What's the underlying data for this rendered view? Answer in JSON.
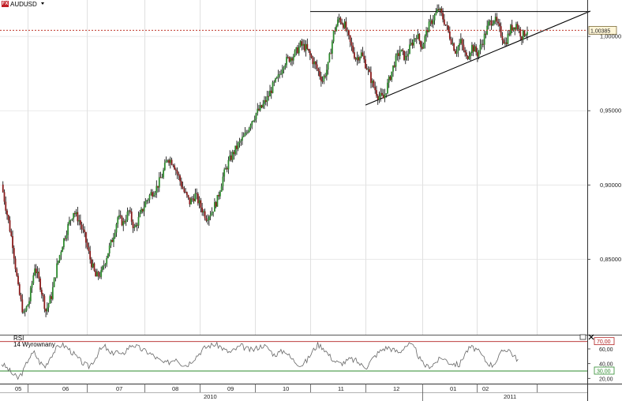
{
  "chart_data": {
    "type": "candlestick",
    "symbol": "AUDUSD",
    "badge": "FX",
    "last_price_label": "1,00385",
    "last_price": 1.00385,
    "price_ylim": [
      0.8,
      1.02
    ],
    "price_ticks": [
      "0,85000",
      "0,90000",
      "0,95000",
      "1,00000"
    ],
    "price_tick_values": [
      0.85,
      0.9,
      0.95,
      1.0
    ],
    "months": [
      "05",
      "06",
      "07",
      "08",
      "09",
      "10",
      "11",
      "12",
      "01",
      "02"
    ],
    "years": [
      "2010",
      "2011"
    ],
    "close_path": [
      [
        0,
        0.9
      ],
      [
        1,
        0.88
      ],
      [
        2,
        0.86
      ],
      [
        3,
        0.83
      ],
      [
        4,
        0.812
      ],
      [
        5,
        0.822
      ],
      [
        6,
        0.845
      ],
      [
        7,
        0.832
      ],
      [
        8,
        0.815
      ],
      [
        9,
        0.825
      ],
      [
        10,
        0.845
      ],
      [
        11,
        0.86
      ],
      [
        12,
        0.872
      ],
      [
        13,
        0.882
      ],
      [
        14,
        0.876
      ],
      [
        15,
        0.865
      ],
      [
        16,
        0.85
      ],
      [
        17,
        0.838
      ],
      [
        18,
        0.84
      ],
      [
        19,
        0.852
      ],
      [
        20,
        0.863
      ],
      [
        21,
        0.878
      ],
      [
        22,
        0.874
      ],
      [
        23,
        0.882
      ],
      [
        24,
        0.87
      ],
      [
        25,
        0.879
      ],
      [
        26,
        0.888
      ],
      [
        27,
        0.894
      ],
      [
        28,
        0.898
      ],
      [
        29,
        0.906
      ],
      [
        30,
        0.918
      ],
      [
        31,
        0.915
      ],
      [
        32,
        0.905
      ],
      [
        33,
        0.895
      ],
      [
        34,
        0.888
      ],
      [
        35,
        0.893
      ],
      [
        36,
        0.885
      ],
      [
        37,
        0.878
      ],
      [
        38,
        0.882
      ],
      [
        39,
        0.89
      ],
      [
        40,
        0.905
      ],
      [
        41,
        0.915
      ],
      [
        42,
        0.922
      ],
      [
        43,
        0.928
      ],
      [
        44,
        0.933
      ],
      [
        45,
        0.942
      ],
      [
        46,
        0.948
      ],
      [
        47,
        0.952
      ],
      [
        48,
        0.958
      ],
      [
        49,
        0.966
      ],
      [
        50,
        0.972
      ],
      [
        51,
        0.982
      ],
      [
        52,
        0.985
      ],
      [
        53,
        0.988
      ],
      [
        54,
        0.994
      ],
      [
        55,
        0.992
      ],
      [
        56,
        0.985
      ],
      [
        57,
        0.978
      ],
      [
        58,
        0.97
      ],
      [
        59,
        0.98
      ],
      [
        60,
        1.002
      ],
      [
        61,
        1.012
      ],
      [
        62,
        1.007
      ],
      [
        63,
        0.995
      ],
      [
        64,
        0.985
      ],
      [
        65,
        0.988
      ],
      [
        66,
        0.979
      ],
      [
        67,
        0.968
      ],
      [
        68,
        0.96
      ],
      [
        69,
        0.958
      ],
      [
        70,
        0.97
      ],
      [
        71,
        0.982
      ],
      [
        72,
        0.99
      ],
      [
        73,
        0.985
      ],
      [
        74,
        0.994
      ],
      [
        75,
        1.001
      ],
      [
        76,
        0.993
      ],
      [
        77,
        1.005
      ],
      [
        78,
        1.012
      ],
      [
        79,
        1.018
      ],
      [
        80,
        1.01
      ],
      [
        81,
        1.0
      ],
      [
        82,
        0.99
      ],
      [
        83,
        0.996
      ],
      [
        84,
        0.985
      ],
      [
        85,
        0.993
      ],
      [
        86,
        0.988
      ],
      [
        87,
        0.997
      ],
      [
        88,
        1.008
      ],
      [
        89,
        1.012
      ],
      [
        90,
        1.004
      ],
      [
        91,
        0.995
      ],
      [
        92,
        1.005
      ],
      [
        93,
        1.008
      ],
      [
        94,
        1.0
      ],
      [
        95,
        1.004
      ]
    ],
    "rsi": {
      "title": "RSI",
      "subtitle": "14 Wyrownany",
      "ylim": [
        15,
        75
      ],
      "ticks": [
        "60,00",
        "40,00",
        "20,00"
      ],
      "tick_values": [
        60,
        40,
        20
      ],
      "levels": [
        "70,00",
        "30,00"
      ],
      "level_values": [
        70,
        30
      ],
      "path": [
        [
          0,
          40
        ],
        [
          1,
          34
        ],
        [
          2,
          26
        ],
        [
          3,
          20
        ],
        [
          4,
          30
        ],
        [
          5,
          48
        ],
        [
          6,
          55
        ],
        [
          7,
          42
        ],
        [
          8,
          36
        ],
        [
          9,
          50
        ],
        [
          10,
          60
        ],
        [
          11,
          66
        ],
        [
          12,
          62
        ],
        [
          13,
          55
        ],
        [
          14,
          47
        ],
        [
          15,
          40
        ],
        [
          16,
          36
        ],
        [
          17,
          45
        ],
        [
          18,
          58
        ],
        [
          19,
          63
        ],
        [
          20,
          52
        ],
        [
          21,
          58
        ],
        [
          22,
          50
        ],
        [
          23,
          60
        ],
        [
          24,
          66
        ],
        [
          25,
          62
        ],
        [
          26,
          58
        ],
        [
          27,
          55
        ],
        [
          28,
          50
        ],
        [
          29,
          44
        ],
        [
          30,
          40
        ],
        [
          31,
          43
        ],
        [
          32,
          48
        ],
        [
          33,
          40
        ],
        [
          34,
          38
        ],
        [
          35,
          45
        ],
        [
          36,
          52
        ],
        [
          37,
          60
        ],
        [
          38,
          64
        ],
        [
          39,
          66
        ],
        [
          40,
          64
        ],
        [
          41,
          58
        ],
        [
          42,
          55
        ],
        [
          43,
          60
        ],
        [
          44,
          64
        ],
        [
          45,
          60
        ],
        [
          46,
          58
        ],
        [
          47,
          62
        ],
        [
          48,
          65
        ],
        [
          49,
          60
        ],
        [
          50,
          52
        ],
        [
          51,
          55
        ],
        [
          52,
          58
        ],
        [
          53,
          48
        ],
        [
          54,
          42
        ],
        [
          55,
          38
        ],
        [
          56,
          44
        ],
        [
          57,
          56
        ],
        [
          58,
          66
        ],
        [
          59,
          62
        ],
        [
          60,
          52
        ],
        [
          61,
          44
        ],
        [
          62,
          40
        ],
        [
          63,
          42
        ],
        [
          64,
          46
        ],
        [
          65,
          44
        ],
        [
          66,
          38
        ],
        [
          67,
          36
        ],
        [
          68,
          46
        ],
        [
          69,
          54
        ],
        [
          70,
          60
        ],
        [
          71,
          62
        ],
        [
          72,
          58
        ],
        [
          73,
          55
        ],
        [
          74,
          64
        ],
        [
          75,
          66
        ],
        [
          76,
          58
        ],
        [
          77,
          42
        ],
        [
          78,
          36
        ],
        [
          79,
          38
        ],
        [
          80,
          44
        ],
        [
          81,
          48
        ],
        [
          82,
          42
        ],
        [
          83,
          40
        ],
        [
          84,
          38
        ],
        [
          85,
          54
        ],
        [
          86,
          62
        ],
        [
          87,
          60
        ],
        [
          88,
          52
        ],
        [
          89,
          42
        ],
        [
          90,
          38
        ],
        [
          91,
          46
        ],
        [
          92,
          58
        ],
        [
          93,
          60
        ],
        [
          94,
          50
        ],
        [
          95,
          44
        ]
      ]
    },
    "colors": {
      "up": "#2e8b2e",
      "down": "#8a1c1c",
      "wick": "#000000",
      "level_line": "#b22222",
      "price_line": "#c0392b",
      "oversold": "#2e8b2e",
      "rsi_line": "#666666"
    }
  }
}
